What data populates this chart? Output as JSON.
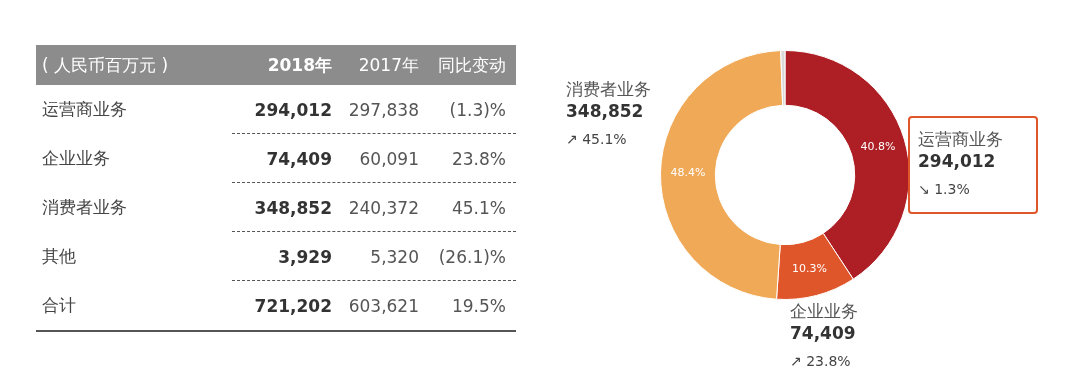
{
  "chart_data": [
    {
      "type": "other",
      "title": "( 人民币百万元 )",
      "annotations": [
        "2018年",
        "2017年",
        "同比变动",
        "运营商业务",
        "294,012",
        "297,838",
        "(1.3)%",
        "企业业务",
        "74,409",
        "60,091",
        "23.8%",
        "消费者业务",
        "348,852",
        "240,372",
        "45.1%",
        "其他",
        "3,929",
        "5,320",
        "(26.1)%",
        "合计",
        "721,202",
        "603,621",
        "19.5%"
      ]
    },
    {
      "type": "donut",
      "categories": [
        "运营商业务",
        "企业业务",
        "消费者业务",
        null
      ],
      "values": [
        294012,
        74409,
        348852,
        3929
      ],
      "colors": [
        "#ad1f25",
        "#e0562b",
        "#f0a956",
        "#d9d9d9"
      ],
      "value_labels": [
        "294,012",
        "74,409",
        "348,852",
        null
      ],
      "annotations": [
        {
          "text": "40.8%",
          "x": "运营商业务"
        },
        {
          "text": "10.3%",
          "x": "企业业务"
        },
        {
          "text": "48.4%",
          "x": "消费者业务"
        },
        {
          "text": "↘ 1.3%",
          "x": "运营商业务"
        },
        {
          "text": "↗ 23.8%",
          "x": "企业业务"
        },
        {
          "text": "↗ 45.1%",
          "x": "消费者业务"
        }
      ]
    }
  ]
}
